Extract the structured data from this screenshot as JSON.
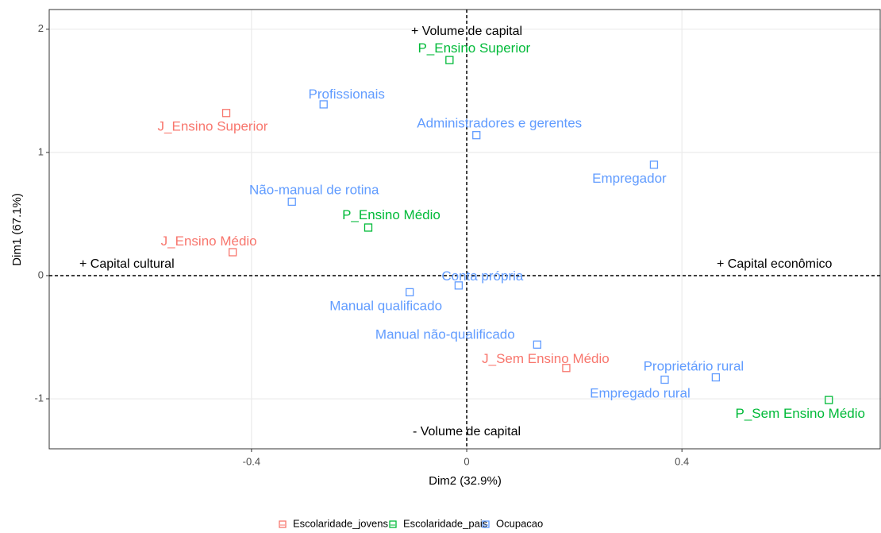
{
  "chart_data": {
    "type": "scatter",
    "xlabel": "Dim2 (32.9%)",
    "ylabel": "Dim1 (67.1%)",
    "xlim": [
      -0.776,
      0.77
    ],
    "ylim": [
      -1.406,
      2.16
    ],
    "xticks": [
      -0.4,
      0,
      0.4
    ],
    "yticks": [
      -1,
      0,
      1,
      2
    ],
    "xticks_labels_note_free": null,
    "hline": 0,
    "vline": 0,
    "grid": true,
    "legend": "bottom",
    "annotations": [
      "+ Volume de capital",
      "- Volume de capital",
      "+ Capital cultural",
      "+ Capital econômico"
    ],
    "series": [
      {
        "name": "Escolaridade_jovens",
        "color": "#F8766D",
        "labels": [
          "J_Ensino Superior",
          "J_Ensino Médio",
          "J_Sem Ensino Médio"
        ],
        "x": [
          -0.447,
          -0.435,
          0.185
        ],
        "values": [
          1.32,
          0.19,
          -0.75
        ]
      },
      {
        "name": "Escolaridade_pais",
        "color": "#00BA38",
        "labels": [
          "P_Ensino Superior",
          "P_Ensino Médio",
          "P_Sem Ensino Médio"
        ],
        "x": [
          -0.032,
          -0.183,
          0.673
        ],
        "values": [
          1.75,
          0.39,
          -1.01
        ]
      },
      {
        "name": "Ocupacao",
        "color": "#619CFF",
        "labels": [
          "Profissionais",
          "Administradores e gerentes",
          "Empregador",
          "Não-manual de rotina",
          "Conta própria",
          "Manual qualificado",
          "Manual não-qualificado",
          "Empregado rural",
          "Proprietário rural"
        ],
        "x": [
          -0.266,
          0.018,
          0.348,
          -0.325,
          -0.015,
          -0.106,
          0.131,
          0.368,
          0.463
        ],
        "values": [
          1.39,
          1.14,
          0.9,
          0.6,
          -0.08,
          -0.135,
          -0.56,
          -0.845,
          -0.826
        ]
      }
    ]
  }
}
